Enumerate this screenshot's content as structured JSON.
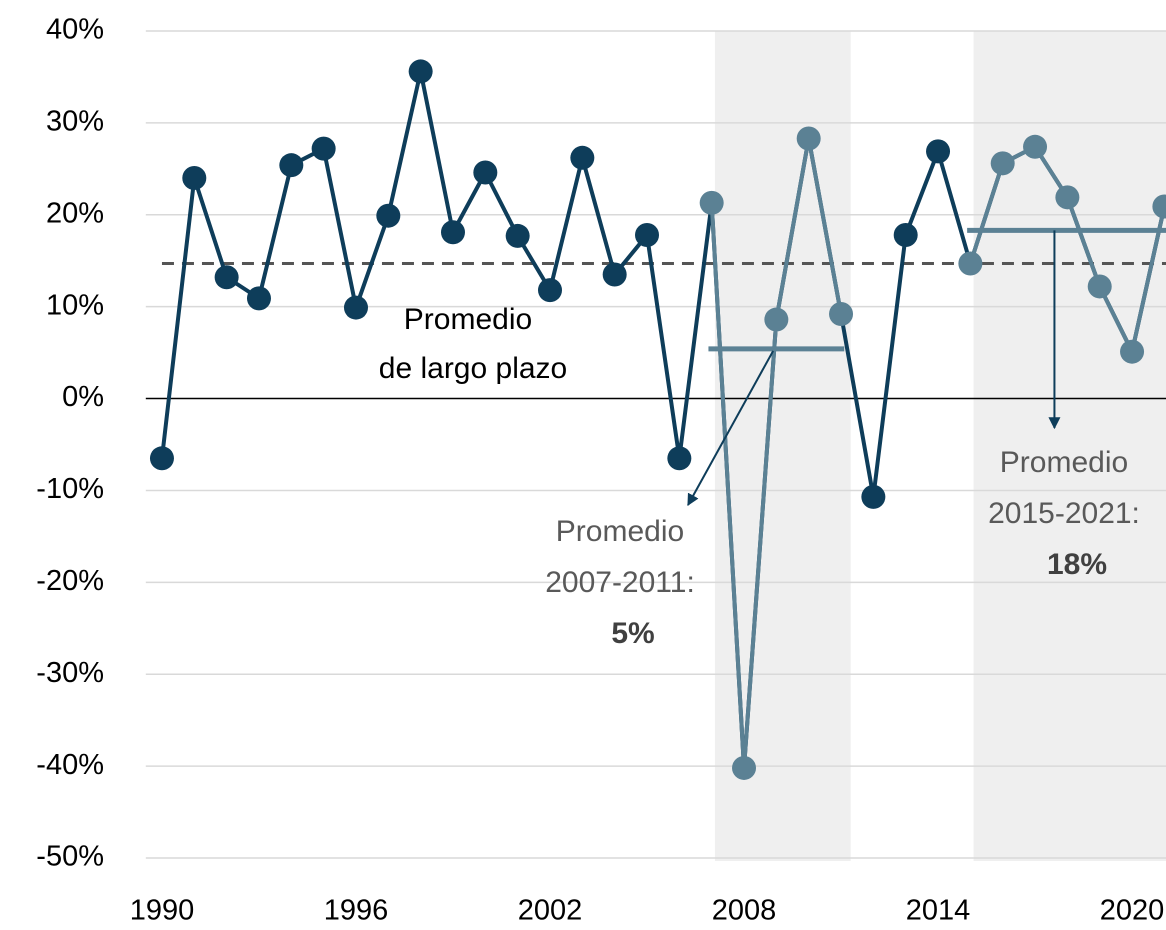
{
  "chart_data": {
    "type": "line",
    "x": [
      1990,
      1991,
      1992,
      1993,
      1994,
      1995,
      1996,
      1997,
      1998,
      1999,
      2000,
      2001,
      2002,
      2003,
      2004,
      2005,
      2006,
      2007,
      2008,
      2009,
      2010,
      2011,
      2012,
      2013,
      2014,
      2015,
      2016,
      2017,
      2018,
      2019,
      2020,
      2021
    ],
    "values": [
      -6.5,
      24.0,
      13.2,
      10.9,
      25.4,
      27.2,
      9.9,
      19.9,
      35.6,
      18.1,
      24.6,
      17.7,
      11.8,
      26.2,
      13.5,
      17.8,
      -6.5,
      21.3,
      -40.2,
      8.6,
      28.3,
      9.2,
      -10.7,
      17.8,
      26.9,
      14.7,
      25.6,
      27.4,
      21.9,
      12.2,
      5.1,
      20.9
    ],
    "color": "#0e3d5a",
    "highlight_color": "#5b8194",
    "highlight_ranges": [
      [
        2007,
        2011
      ],
      [
        2015,
        2021
      ]
    ],
    "xlim": [
      1989.5,
      2021.05
    ],
    "xticks": [
      1990,
      1996,
      2002,
      2008,
      2014,
      2020
    ],
    "ylim": [
      -50,
      40
    ],
    "yticks": [
      {
        "value": -50,
        "label": "-50%"
      },
      {
        "value": -40,
        "label": "-40%"
      },
      {
        "value": -30,
        "label": "-30%"
      },
      {
        "value": -20,
        "label": "-20%"
      },
      {
        "value": -10,
        "label": "-10%"
      },
      {
        "value": 0,
        "label": "0%"
      },
      {
        "value": 10,
        "label": "10%"
      },
      {
        "value": 20,
        "label": "20%"
      },
      {
        "value": 30,
        "label": "30%"
      },
      {
        "value": 40,
        "label": "40%"
      }
    ],
    "grid": true,
    "long_term_average": {
      "value": 14.7,
      "label_lines": [
        "Promedio",
        "de largo plazo"
      ]
    },
    "period_averages": [
      {
        "x": [
          2007,
          2011
        ],
        "value": 5.4,
        "value_label": "5%",
        "label_lines": [
          "Promedio",
          "2007-2011:"
        ]
      },
      {
        "x": [
          2015,
          2021
        ],
        "value": 18.3,
        "value_label": "18%",
        "label_lines": [
          "Promedio",
          "2015-2021:"
        ]
      }
    ]
  }
}
